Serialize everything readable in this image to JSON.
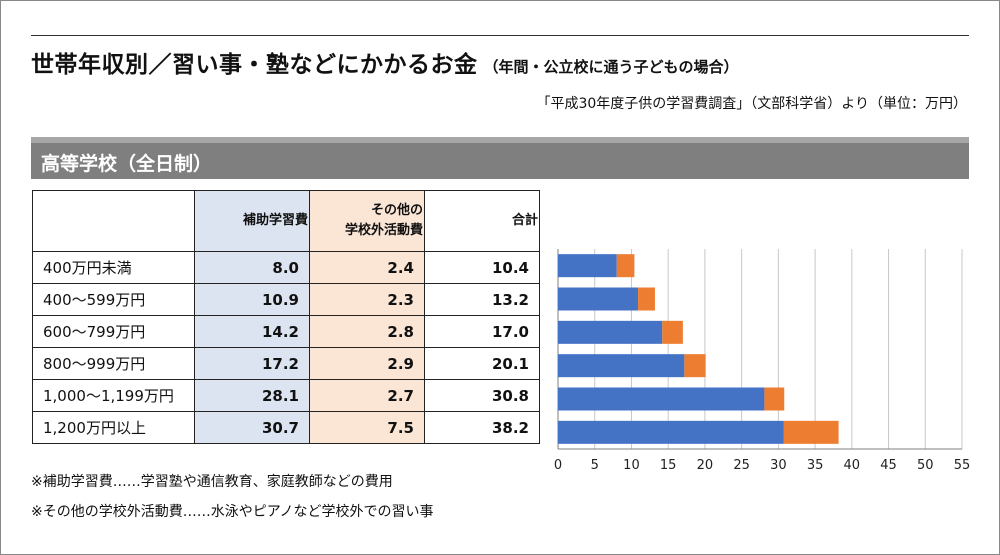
{
  "title": {
    "main": "世帯年収別／習い事・塾などにかかるお金",
    "sub": "（年間・公立校に通う子どもの場合）"
  },
  "source": "「平成30年度子供の学習費調査」（文部科学省）より（単位：万円）",
  "section": "高等学校（全日制）",
  "table": {
    "headers": [
      "",
      "補助学習費",
      "その他の\n学校外活動費",
      "合計"
    ],
    "rows": [
      {
        "label": "400万円未満",
        "hojo": "8.0",
        "sonota": "2.4",
        "total": "10.4"
      },
      {
        "label": "400～599万円",
        "hojo": "10.9",
        "sonota": "2.3",
        "total": "13.2"
      },
      {
        "label": "600～799万円",
        "hojo": "14.2",
        "sonota": "2.8",
        "total": "17.0"
      },
      {
        "label": "800～999万円",
        "hojo": "17.2",
        "sonota": "2.9",
        "total": "20.1"
      },
      {
        "label": "1,000～1,199万円",
        "hojo": "28.1",
        "sonota": "2.7",
        "total": "30.8"
      },
      {
        "label": "1,200万円以上",
        "hojo": "30.7",
        "sonota": "7.5",
        "total": "38.2"
      }
    ]
  },
  "notes": [
    "※補助学習費……学習塾や通信教育、家庭教師などの費用",
    "※その他の学校外活動費……水泳やピアノなど学校外での習い事"
  ],
  "chart_data": {
    "type": "bar",
    "orientation": "horizontal",
    "stacked": true,
    "categories": [
      "400万円未満",
      "400～599万円",
      "600～799万円",
      "800～999万円",
      "1,000～1,199万円",
      "1,200万円以上"
    ],
    "series": [
      {
        "values": [
          8.0,
          10.9,
          14.2,
          17.2,
          28.1,
          30.7
        ],
        "color": "#4472c4"
      },
      {
        "values": [
          2.4,
          2.3,
          2.8,
          2.9,
          2.7,
          7.5
        ],
        "color": "#ed7d31"
      }
    ],
    "xlim": [
      0,
      55
    ],
    "xticks": [
      0,
      5,
      10,
      15,
      20,
      25,
      30,
      35,
      40,
      45,
      50,
      55
    ],
    "grid": true,
    "legend": "none"
  }
}
